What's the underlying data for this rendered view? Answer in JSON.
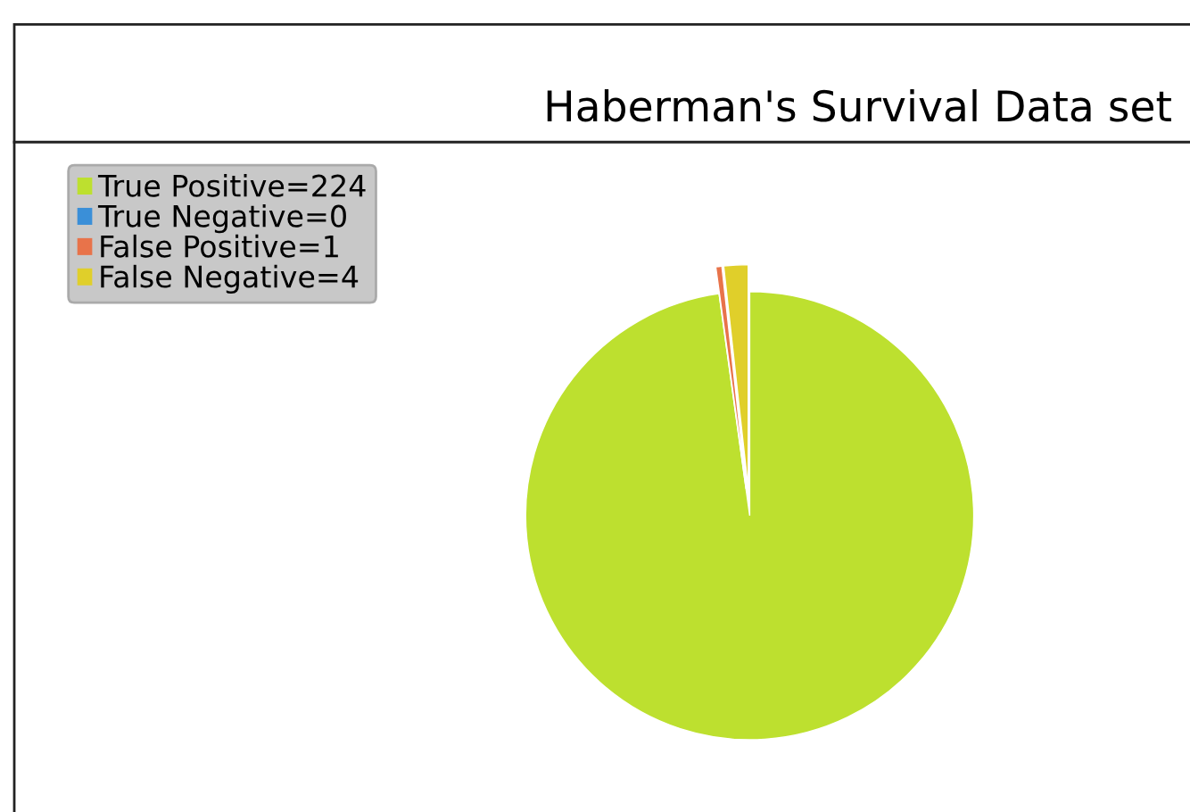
{
  "chart_data": {
    "type": "pie",
    "title": "Haberman's Survival Data set",
    "categories": [
      "True Positive=224",
      "True Negative=0",
      "False Positive=1",
      "False Negative=4"
    ],
    "values": [
      224,
      0,
      1,
      4
    ],
    "colors": [
      "#bde02f",
      "#3a8fd8",
      "#e8734a",
      "#e0cf2a"
    ],
    "legend": "top left"
  }
}
